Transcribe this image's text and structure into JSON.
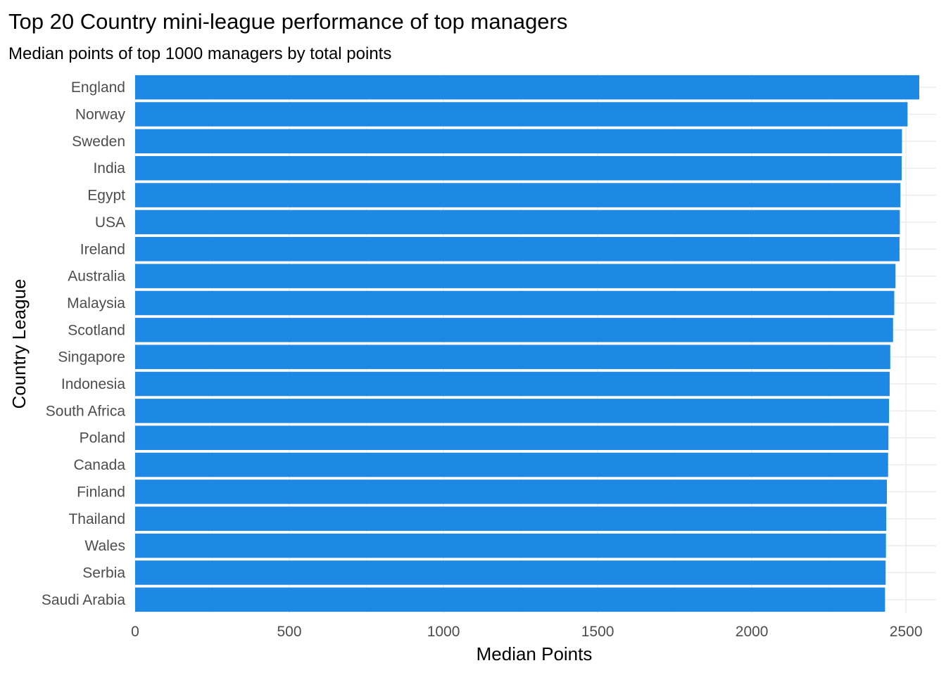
{
  "chart_data": {
    "type": "bar",
    "orientation": "horizontal",
    "title": "Top 20 Country mini-league performance of top managers",
    "subtitle": "Median points of top 1000 managers by total points",
    "xlabel": "Median Points",
    "ylabel": "Country League",
    "categories": [
      "England",
      "Norway",
      "Sweden",
      "India",
      "Egypt",
      "USA",
      "Ireland",
      "Australia",
      "Malaysia",
      "Scotland",
      "Singapore",
      "Indonesia",
      "South Africa",
      "Poland",
      "Canada",
      "Finland",
      "Thailand",
      "Wales",
      "Serbia",
      "Saudi Arabia"
    ],
    "values": [
      2543,
      2505,
      2487,
      2486,
      2482,
      2480,
      2479,
      2466,
      2462,
      2458,
      2449,
      2447,
      2445,
      2443,
      2442,
      2438,
      2436,
      2435,
      2434,
      2432
    ],
    "xlim": [
      0,
      2600
    ],
    "xticks": [
      0,
      500,
      1000,
      1500,
      2000,
      2500
    ],
    "grid": true,
    "legend": "none",
    "bar_color": "#1e88e5"
  }
}
